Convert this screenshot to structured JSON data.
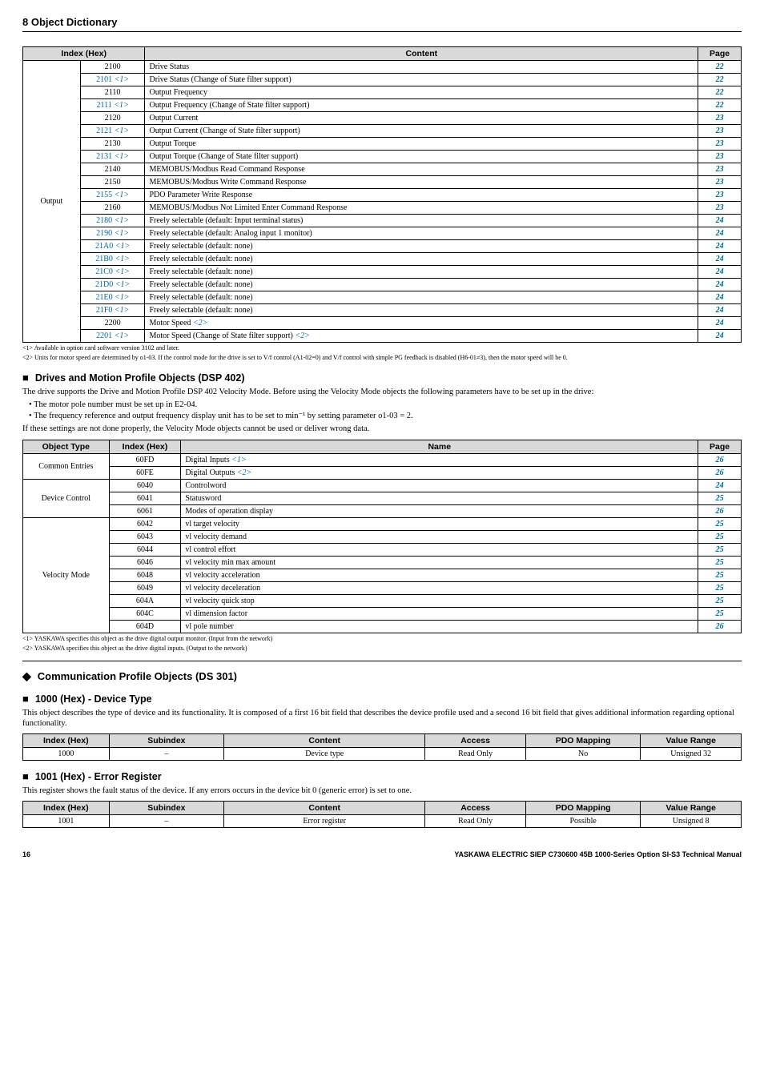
{
  "header_section": "8 Object Dictionary",
  "outputs_table": {
    "headers": [
      "Index (Hex)",
      "Content",
      "Page"
    ],
    "col_widths": [
      "8%",
      "9%",
      "77%",
      "6%"
    ],
    "category": "Output",
    "rows": [
      {
        "idx": "2100",
        "blue": false,
        "content": "Drive Status",
        "page": "22"
      },
      {
        "idx": "2101 <1>",
        "blue": true,
        "content": "Drive Status (Change of State filter support)",
        "page": "22"
      },
      {
        "idx": "2110",
        "blue": false,
        "content": "Output Frequency",
        "page": "22"
      },
      {
        "idx": "2111 <1>",
        "blue": true,
        "content": "Output Frequency (Change of State filter support)",
        "page": "22"
      },
      {
        "idx": "2120",
        "blue": false,
        "content": "Output Current",
        "page": "23"
      },
      {
        "idx": "2121 <1>",
        "blue": true,
        "content": "Output Current (Change of State filter support)",
        "page": "23"
      },
      {
        "idx": "2130",
        "blue": false,
        "content": "Output Torque",
        "page": "23"
      },
      {
        "idx": "2131 <1>",
        "blue": true,
        "content": "Output Torque (Change of State filter support)",
        "page": "23"
      },
      {
        "idx": "2140",
        "blue": false,
        "content": "MEMOBUS/Modbus Read Command Response",
        "page": "23"
      },
      {
        "idx": "2150",
        "blue": false,
        "content": "MEMOBUS/Modbus Write Command Response",
        "page": "23"
      },
      {
        "idx": "2155 <1>",
        "blue": true,
        "content": "PDO Parameter Write Response",
        "page": "23"
      },
      {
        "idx": "2160",
        "blue": false,
        "content": "MEMOBUS/Modbus Not Limited Enter Command Response",
        "page": "23"
      },
      {
        "idx": "2180 <1>",
        "blue": true,
        "content": "Freely selectable (default: Input terminal status)",
        "page": "24"
      },
      {
        "idx": "2190 <1>",
        "blue": true,
        "content": "Freely selectable (default: Analog input 1 monitor)",
        "page": "24"
      },
      {
        "idx": "21A0 <1>",
        "blue": true,
        "content": "Freely selectable (default: none)",
        "page": "24"
      },
      {
        "idx": "21B0 <1>",
        "blue": true,
        "content": "Freely selectable (default: none)",
        "page": "24"
      },
      {
        "idx": "21C0 <1>",
        "blue": true,
        "content": "Freely selectable (default: none)",
        "page": "24"
      },
      {
        "idx": "21D0 <1>",
        "blue": true,
        "content": "Freely selectable (default: none)",
        "page": "24"
      },
      {
        "idx": "21E0 <1>",
        "blue": true,
        "content": "Freely selectable (default: none)",
        "page": "24"
      },
      {
        "idx": "21F0 <1>",
        "blue": true,
        "content": "Freely selectable (default: none)",
        "page": "24"
      },
      {
        "idx": "2200",
        "blue": false,
        "content": "Motor Speed <2>",
        "page": "24",
        "content_has_blue_ref": true
      },
      {
        "idx": "2201 <1>",
        "blue": true,
        "content": "Motor Speed (Change of State filter support) <2>",
        "page": "24",
        "content_has_blue_ref": true
      }
    ],
    "footnotes": [
      "<1> Available in option card software version 3102 and later.",
      "<2> Units for motor speed are determined by o1-03. If the control mode for the drive is set to V/f control (A1-02=0) and V/f control with simple PG feedback is disabled (H6-01≠3), then the motor speed will be 0."
    ]
  },
  "dsp402": {
    "heading": "Drives and Motion Profile Objects (DSP 402)",
    "intro": "The drive supports the Drive and Motion Profile DSP 402 Velocity Mode. Before using the Velocity Mode objects the following parameters have to be set up in the drive:",
    "bullets": [
      "The motor pole number must be set up in E2-04.",
      "The frequency reference and output frequency display unit has to be set to min⁻¹ by setting parameter o1-03 = 2."
    ],
    "post": "If these settings are not done properly, the Velocity Mode objects cannot be used or deliver wrong data.",
    "table": {
      "headers": [
        "Object Type",
        "Index (Hex)",
        "Name",
        "Page"
      ],
      "col_widths": [
        "12%",
        "10%",
        "72%",
        "6%"
      ],
      "groups": [
        {
          "type": "Common Entries",
          "rows": [
            {
              "idx": "60FD",
              "name": "Digital Inputs <1>",
              "blue_ref": true,
              "page": "26"
            },
            {
              "idx": "60FE",
              "name": "Digital Outputs <2>",
              "blue_ref": true,
              "page": "26"
            }
          ]
        },
        {
          "type": "Device Control",
          "rows": [
            {
              "idx": "6040",
              "name": "Controlword",
              "page": "24"
            },
            {
              "idx": "6041",
              "name": "Statusword",
              "page": "25"
            },
            {
              "idx": "6061",
              "name": "Modes of operation display",
              "page": "26"
            }
          ]
        },
        {
          "type": "Velocity Mode",
          "rows": [
            {
              "idx": "6042",
              "name": "vl target velocity",
              "page": "25"
            },
            {
              "idx": "6043",
              "name": "vl velocity demand",
              "page": "25"
            },
            {
              "idx": "6044",
              "name": "vl control effort",
              "page": "25"
            },
            {
              "idx": "6046",
              "name": "vl velocity min max amount",
              "page": "25"
            },
            {
              "idx": "6048",
              "name": "vl velocity acceleration",
              "page": "25"
            },
            {
              "idx": "6049",
              "name": "vl velocity deceleration",
              "page": "25"
            },
            {
              "idx": "604A",
              "name": "vl velocity quick stop",
              "page": "25"
            },
            {
              "idx": "604C",
              "name": "vl dimension factor",
              "page": "25"
            },
            {
              "idx": "604D",
              "name": "vl pole number",
              "page": "26"
            }
          ]
        }
      ],
      "footnotes": [
        "<1> YASKAWA specifies this object as the drive digital output monitor. (Input from the network)",
        "<2> YASKAWA specifies this object as the drive digital inputs. (Output to the network)"
      ]
    }
  },
  "ds301": {
    "heading": "Communication Profile Objects (DS 301)"
  },
  "sec1000": {
    "heading": "1000 (Hex) - Device Type",
    "text": "This object describes the type of device and its functionality. It is composed of a first 16 bit field that describes the device profile used and a second 16 bit field that gives additional information regarding optional functionality.",
    "table": {
      "headers": [
        "Index (Hex)",
        "Subindex",
        "Content",
        "Access",
        "PDO Mapping",
        "Value Range"
      ],
      "col_widths": [
        "12%",
        "16%",
        "28%",
        "14%",
        "16%",
        "14%"
      ],
      "rows": [
        {
          "idx": "1000",
          "sub": "–",
          "content": "Device type",
          "access": "Read Only",
          "pdo": "No",
          "range": "Unsigned 32"
        }
      ]
    }
  },
  "sec1001": {
    "heading": "1001 (Hex) - Error Register",
    "text": "This register shows the fault status of the device. If any errors occurs in the device bit 0 (generic error) is set to one.",
    "table": {
      "headers": [
        "Index (Hex)",
        "Subindex",
        "Content",
        "Access",
        "PDO Mapping",
        "Value Range"
      ],
      "col_widths": [
        "12%",
        "16%",
        "28%",
        "14%",
        "16%",
        "14%"
      ],
      "rows": [
        {
          "idx": "1001",
          "sub": "–",
          "content": "Error register",
          "access": "Read Only",
          "pdo": "Possible",
          "range": "Unsigned 8"
        }
      ]
    }
  },
  "footer": {
    "page": "16",
    "right": "YASKAWA ELECTRIC SIEP C730600 45B 1000-Series Option SI-S3 Technical Manual"
  }
}
